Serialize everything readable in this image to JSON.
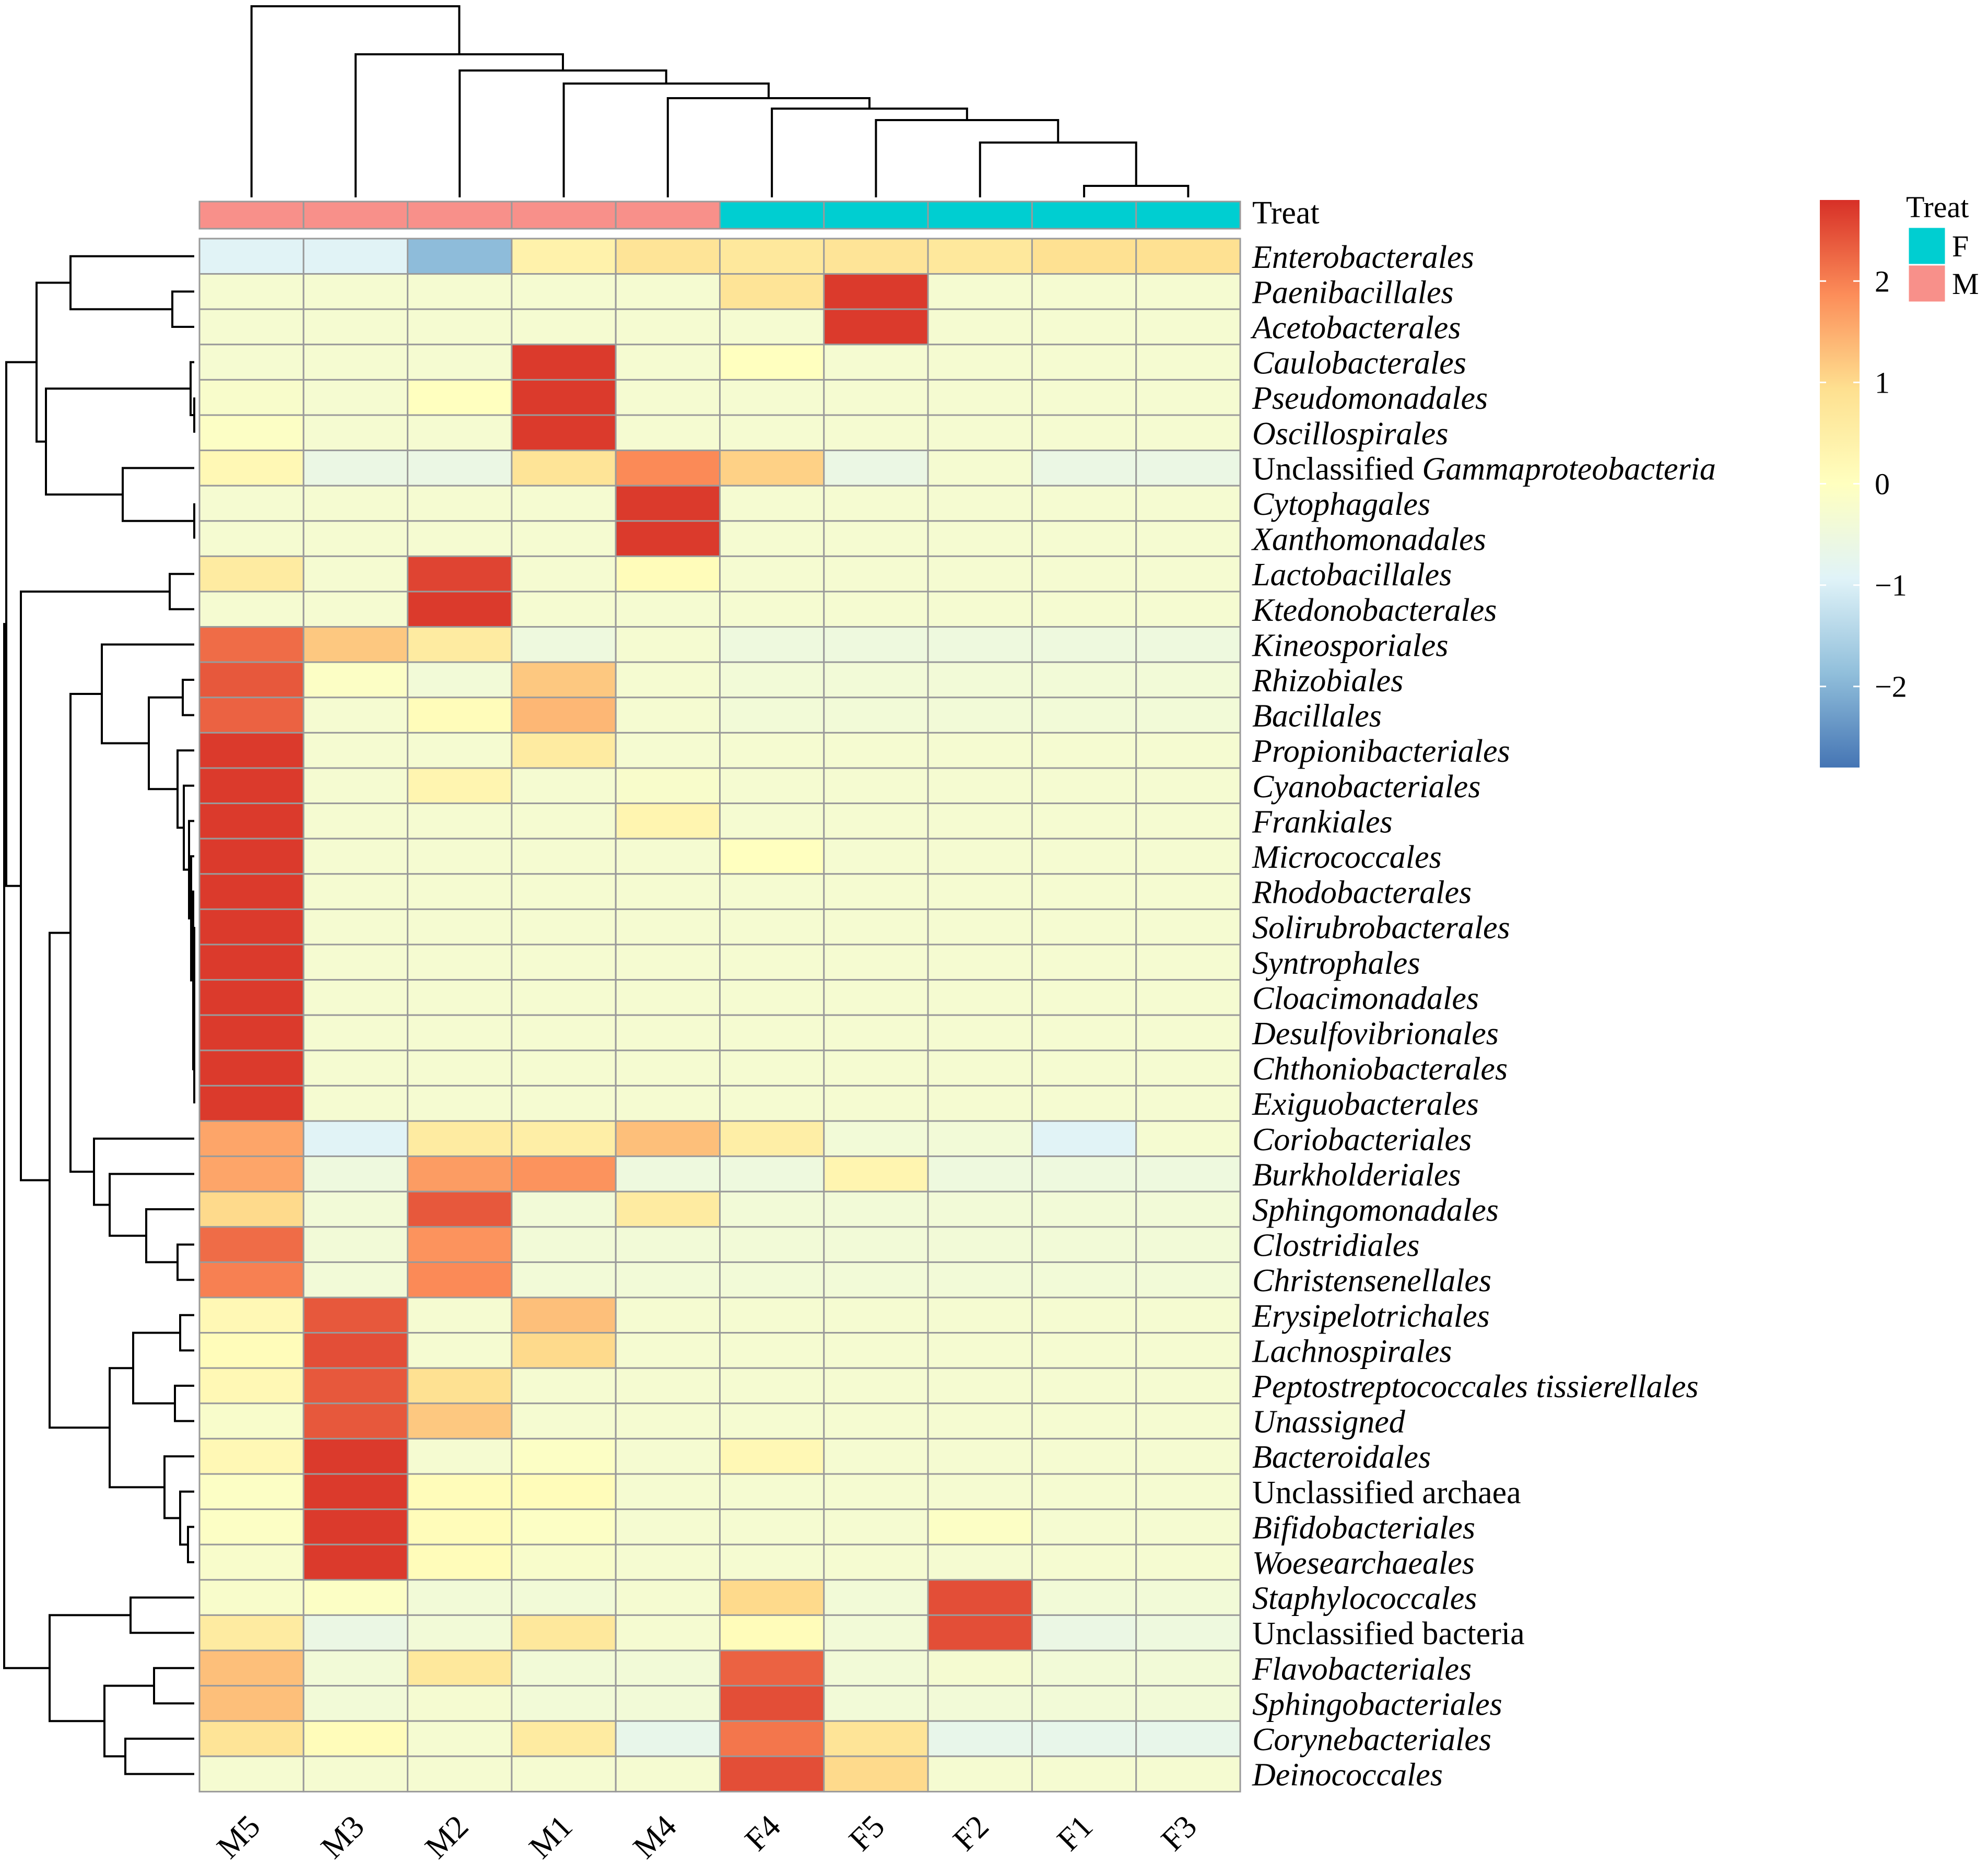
{
  "chart_data": {
    "type": "heatmap",
    "columns": [
      "M5",
      "M3",
      "M2",
      "M1",
      "M4",
      "F4",
      "F5",
      "F2",
      "F1",
      "F3"
    ],
    "treat": {
      "label": "Treat",
      "values": [
        "M",
        "M",
        "M",
        "M",
        "M",
        "F",
        "F",
        "F",
        "F",
        "F"
      ]
    },
    "legend": {
      "title": "Treat",
      "items": [
        {
          "label": "F",
          "color": "#00CED1"
        },
        {
          "label": "M",
          "color": "#F8908A"
        }
      ]
    },
    "colorbar": {
      "ticks": [
        "2",
        "1",
        "0",
        "−1",
        "−2"
      ],
      "tick_values": [
        2,
        1,
        0,
        -1,
        -2
      ],
      "range": [
        -2.8,
        2.8
      ],
      "colors": [
        "#4575B4",
        "#91BFDB",
        "#E0F3F8",
        "#FFFFBF",
        "#FEE090",
        "#FC8D59",
        "#D73027"
      ]
    },
    "rows": [
      {
        "parts": [
          {
            "t": "Enterobacterales",
            "i": true
          }
        ],
        "values": [
          -0.9,
          -0.9,
          -1.9,
          0.4,
          0.8,
          0.7,
          0.8,
          0.7,
          0.9,
          0.9
        ]
      },
      {
        "parts": [
          {
            "t": "Paenibacillales",
            "i": true
          }
        ],
        "values": [
          -0.3,
          -0.3,
          -0.3,
          -0.3,
          -0.3,
          0.8,
          2.7,
          -0.3,
          -0.3,
          -0.3
        ]
      },
      {
        "parts": [
          {
            "t": "Acetobacterales",
            "i": true
          }
        ],
        "values": [
          -0.3,
          -0.3,
          -0.3,
          -0.3,
          -0.3,
          -0.3,
          2.7,
          -0.3,
          -0.3,
          -0.3
        ]
      },
      {
        "parts": [
          {
            "t": "Caulobacterales",
            "i": true
          }
        ],
        "values": [
          -0.3,
          -0.3,
          -0.3,
          2.7,
          -0.3,
          0.0,
          -0.3,
          -0.3,
          -0.3,
          -0.3
        ]
      },
      {
        "parts": [
          {
            "t": "Pseudomonadales",
            "i": true
          }
        ],
        "values": [
          -0.2,
          -0.3,
          0.0,
          2.7,
          -0.3,
          -0.3,
          -0.3,
          -0.3,
          -0.3,
          -0.3
        ]
      },
      {
        "parts": [
          {
            "t": "Oscillospirales",
            "i": true
          }
        ],
        "values": [
          -0.1,
          -0.3,
          -0.3,
          2.7,
          -0.3,
          -0.3,
          -0.3,
          -0.3,
          -0.3,
          -0.3
        ]
      },
      {
        "parts": [
          {
            "t": "Unclassified ",
            "i": false
          },
          {
            "t": "Gammaproteobacteria",
            "i": true
          }
        ],
        "values": [
          0.2,
          -0.6,
          -0.6,
          0.8,
          1.9,
          1.1,
          -0.6,
          -0.3,
          -0.6,
          -0.6
        ]
      },
      {
        "parts": [
          {
            "t": "Cytophagales",
            "i": true
          }
        ],
        "values": [
          -0.3,
          -0.3,
          -0.3,
          -0.3,
          2.7,
          -0.3,
          -0.3,
          -0.3,
          -0.3,
          -0.3
        ]
      },
      {
        "parts": [
          {
            "t": "Xanthomonadales",
            "i": true
          }
        ],
        "values": [
          -0.3,
          -0.3,
          -0.3,
          -0.3,
          2.7,
          -0.3,
          -0.3,
          -0.3,
          -0.3,
          -0.3
        ]
      },
      {
        "parts": [
          {
            "t": "Lactobacillales",
            "i": true
          }
        ],
        "values": [
          0.6,
          -0.3,
          2.6,
          -0.3,
          0.1,
          -0.3,
          -0.3,
          -0.3,
          -0.3,
          -0.3
        ]
      },
      {
        "parts": [
          {
            "t": "Ktedonobacterales",
            "i": true
          }
        ],
        "values": [
          -0.3,
          -0.3,
          2.7,
          -0.3,
          -0.3,
          -0.3,
          -0.3,
          -0.3,
          -0.3,
          -0.3
        ]
      },
      {
        "parts": [
          {
            "t": "Kineosporiales",
            "i": true
          }
        ],
        "values": [
          2.2,
          1.2,
          0.6,
          -0.5,
          -0.3,
          -0.5,
          -0.5,
          -0.5,
          -0.5,
          -0.5
        ]
      },
      {
        "parts": [
          {
            "t": "Rhizobiales",
            "i": true
          }
        ],
        "values": [
          2.4,
          -0.1,
          -0.4,
          1.2,
          -0.3,
          -0.4,
          -0.4,
          -0.4,
          -0.4,
          -0.4
        ]
      },
      {
        "parts": [
          {
            "t": "Bacillales",
            "i": true
          }
        ],
        "values": [
          2.3,
          -0.3,
          0.1,
          1.4,
          -0.3,
          -0.4,
          -0.4,
          -0.4,
          -0.4,
          -0.4
        ]
      },
      {
        "parts": [
          {
            "t": "Propionibacteriales",
            "i": true
          }
        ],
        "values": [
          2.7,
          -0.3,
          -0.3,
          0.6,
          -0.3,
          -0.3,
          -0.3,
          -0.3,
          -0.3,
          -0.3
        ]
      },
      {
        "parts": [
          {
            "t": "Cyanobacteriales",
            "i": true
          }
        ],
        "values": [
          2.7,
          -0.3,
          0.3,
          -0.3,
          -0.2,
          -0.3,
          -0.3,
          -0.3,
          -0.3,
          -0.3
        ]
      },
      {
        "parts": [
          {
            "t": "Frankiales",
            "i": true
          }
        ],
        "values": [
          2.7,
          -0.3,
          -0.3,
          -0.3,
          0.3,
          -0.3,
          -0.3,
          -0.3,
          -0.3,
          -0.3
        ]
      },
      {
        "parts": [
          {
            "t": "Micrococcales",
            "i": true
          }
        ],
        "values": [
          2.7,
          -0.3,
          -0.3,
          -0.3,
          -0.3,
          0.0,
          -0.3,
          -0.3,
          -0.3,
          -0.3
        ]
      },
      {
        "parts": [
          {
            "t": "Rhodobacterales",
            "i": true
          }
        ],
        "values": [
          2.7,
          -0.3,
          -0.3,
          -0.3,
          -0.3,
          -0.3,
          -0.3,
          -0.3,
          -0.3,
          -0.3
        ]
      },
      {
        "parts": [
          {
            "t": "Solirubrobacterales",
            "i": true
          }
        ],
        "values": [
          2.7,
          -0.3,
          -0.3,
          -0.3,
          -0.3,
          -0.3,
          -0.3,
          -0.3,
          -0.3,
          -0.3
        ]
      },
      {
        "parts": [
          {
            "t": "Syntrophales",
            "i": true
          }
        ],
        "values": [
          2.7,
          -0.3,
          -0.3,
          -0.3,
          -0.3,
          -0.3,
          -0.3,
          -0.3,
          -0.3,
          -0.3
        ]
      },
      {
        "parts": [
          {
            "t": "Cloacimonadales",
            "i": true
          }
        ],
        "values": [
          2.7,
          -0.3,
          -0.3,
          -0.3,
          -0.3,
          -0.3,
          -0.3,
          -0.3,
          -0.3,
          -0.3
        ]
      },
      {
        "parts": [
          {
            "t": "Desulfovibrionales",
            "i": true
          }
        ],
        "values": [
          2.7,
          -0.3,
          -0.3,
          -0.3,
          -0.3,
          -0.3,
          -0.3,
          -0.3,
          -0.3,
          -0.3
        ]
      },
      {
        "parts": [
          {
            "t": "Chthoniobacterales",
            "i": true
          }
        ],
        "values": [
          2.7,
          -0.3,
          -0.3,
          -0.3,
          -0.3,
          -0.3,
          -0.3,
          -0.3,
          -0.3,
          -0.3
        ]
      },
      {
        "parts": [
          {
            "t": "Exiguobacterales",
            "i": true
          }
        ],
        "values": [
          2.7,
          -0.3,
          -0.3,
          -0.3,
          -0.3,
          -0.3,
          -0.3,
          -0.3,
          -0.3,
          -0.3
        ]
      },
      {
        "parts": [
          {
            "t": "Coriobacteriales",
            "i": true
          }
        ],
        "values": [
          1.6,
          -0.9,
          0.6,
          0.5,
          1.3,
          0.5,
          -0.4,
          -0.4,
          -0.9,
          -0.3
        ]
      },
      {
        "parts": [
          {
            "t": "Burkholderiales",
            "i": true
          }
        ],
        "values": [
          1.6,
          -0.5,
          1.7,
          1.8,
          -0.5,
          -0.5,
          0.3,
          -0.5,
          -0.5,
          -0.5
        ]
      },
      {
        "parts": [
          {
            "t": "Sphingomonadales",
            "i": true
          }
        ],
        "values": [
          1.0,
          -0.4,
          2.4,
          -0.4,
          0.6,
          -0.4,
          -0.4,
          -0.4,
          -0.4,
          -0.4
        ]
      },
      {
        "parts": [
          {
            "t": "Clostridiales",
            "i": true
          }
        ],
        "values": [
          2.2,
          -0.4,
          1.8,
          -0.4,
          -0.4,
          -0.4,
          -0.4,
          -0.4,
          -0.4,
          -0.4
        ]
      },
      {
        "parts": [
          {
            "t": "Christensenellales",
            "i": true
          }
        ],
        "values": [
          2.0,
          -0.4,
          1.9,
          -0.4,
          -0.4,
          -0.4,
          -0.4,
          -0.4,
          -0.4,
          -0.4
        ]
      },
      {
        "parts": [
          {
            "t": "Erysipelotrichales",
            "i": true
          }
        ],
        "values": [
          0.2,
          2.4,
          -0.3,
          1.3,
          -0.3,
          -0.3,
          -0.3,
          -0.3,
          -0.3,
          -0.3
        ]
      },
      {
        "parts": [
          {
            "t": "Lachnospirales",
            "i": true
          }
        ],
        "values": [
          0.1,
          2.5,
          -0.3,
          1.0,
          -0.3,
          -0.3,
          -0.3,
          -0.3,
          -0.3,
          -0.3
        ]
      },
      {
        "parts": [
          {
            "t": "Peptostreptococcales tissierellales",
            "i": true
          }
        ],
        "values": [
          0.2,
          2.4,
          0.9,
          -0.3,
          -0.3,
          -0.3,
          -0.3,
          -0.3,
          -0.3,
          -0.3
        ]
      },
      {
        "parts": [
          {
            "t": "Unassigned",
            "i": true
          }
        ],
        "values": [
          -0.2,
          2.4,
          1.2,
          -0.3,
          -0.3,
          -0.3,
          -0.3,
          -0.3,
          -0.3,
          -0.3
        ]
      },
      {
        "parts": [
          {
            "t": "Bacteroidales",
            "i": true
          }
        ],
        "values": [
          0.2,
          2.7,
          -0.3,
          -0.1,
          -0.3,
          0.2,
          -0.3,
          -0.3,
          -0.3,
          -0.3
        ]
      },
      {
        "parts": [
          {
            "t": "Unclassified archaea",
            "i": false
          }
        ],
        "values": [
          -0.1,
          2.7,
          0.1,
          0.1,
          -0.3,
          -0.3,
          -0.3,
          -0.3,
          -0.3,
          -0.3
        ]
      },
      {
        "parts": [
          {
            "t": "Bifidobacteriales",
            "i": true
          }
        ],
        "values": [
          -0.1,
          2.7,
          0.1,
          -0.1,
          -0.3,
          -0.3,
          -0.3,
          -0.1,
          -0.3,
          -0.3
        ]
      },
      {
        "parts": [
          {
            "t": "Woesearchaeales",
            "i": true
          }
        ],
        "values": [
          -0.2,
          2.7,
          0.1,
          -0.2,
          -0.3,
          -0.3,
          -0.3,
          -0.3,
          -0.3,
          -0.3
        ]
      },
      {
        "parts": [
          {
            "t": "Staphylococcales",
            "i": true
          }
        ],
        "values": [
          -0.2,
          -0.1,
          -0.4,
          -0.4,
          -0.3,
          1.0,
          -0.4,
          2.5,
          -0.4,
          -0.4
        ]
      },
      {
        "parts": [
          {
            "t": "Unclassified bacteria",
            "i": false
          }
        ],
        "values": [
          0.6,
          -0.6,
          -0.4,
          0.7,
          -0.3,
          0.1,
          -0.4,
          2.5,
          -0.6,
          -0.5
        ]
      },
      {
        "parts": [
          {
            "t": "Flavobacteriales",
            "i": true
          }
        ],
        "values": [
          1.3,
          -0.4,
          0.7,
          -0.4,
          -0.4,
          2.3,
          -0.4,
          -0.3,
          -0.4,
          -0.4
        ]
      },
      {
        "parts": [
          {
            "t": "Sphingobacteriales",
            "i": true
          }
        ],
        "values": [
          1.3,
          -0.4,
          -0.3,
          -0.4,
          -0.4,
          2.5,
          -0.4,
          -0.4,
          -0.4,
          -0.4
        ]
      },
      {
        "parts": [
          {
            "t": "Corynebacteriales",
            "i": true
          }
        ],
        "values": [
          0.8,
          0.1,
          -0.3,
          0.6,
          -0.7,
          2.1,
          0.8,
          -0.7,
          -0.7,
          -0.7
        ]
      },
      {
        "parts": [
          {
            "t": "Deinococcales",
            "i": true
          }
        ],
        "values": [
          -0.3,
          -0.3,
          -0.3,
          -0.3,
          -0.3,
          2.5,
          1.0,
          -0.3,
          -0.3,
          -0.3
        ]
      }
    ]
  }
}
